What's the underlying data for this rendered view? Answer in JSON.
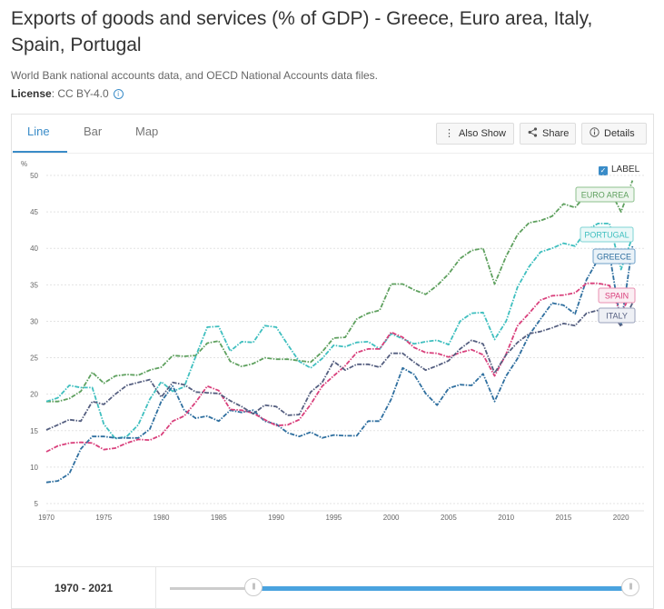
{
  "title": "Exports of goods and services (% of GDP) - Greece, Euro area, Italy, Spain, Portugal",
  "source": "World Bank national accounts data, and OECD National Accounts data files.",
  "license_label": "License",
  "license_value": ": CC BY-4.0",
  "tabs": [
    "Line",
    "Bar",
    "Map"
  ],
  "active_tab": "Line",
  "buttons": {
    "also_show": "Also Show",
    "share": "Share",
    "details": "Details"
  },
  "icons": {
    "also_show": "vertical-dots-icon",
    "share": "share-icon",
    "details": "info-circle-icon"
  },
  "label_toggle": "LABEL",
  "range_label": "1970 - 2021",
  "chart_data": {
    "type": "line",
    "title": "",
    "xlabel": "",
    "ylabel": "%",
    "x": [
      1970,
      1971,
      1972,
      1973,
      1974,
      1975,
      1976,
      1977,
      1978,
      1979,
      1980,
      1981,
      1982,
      1983,
      1984,
      1985,
      1986,
      1987,
      1988,
      1989,
      1990,
      1991,
      1992,
      1993,
      1994,
      1995,
      1996,
      1997,
      1998,
      1999,
      2000,
      2001,
      2002,
      2003,
      2004,
      2005,
      2006,
      2007,
      2008,
      2009,
      2010,
      2011,
      2012,
      2013,
      2014,
      2015,
      2016,
      2017,
      2018,
      2019,
      2020,
      2021
    ],
    "xticks": [
      1970,
      1975,
      1980,
      1985,
      1990,
      1995,
      2000,
      2005,
      2010,
      2015,
      2020
    ],
    "yticks": [
      5,
      10,
      15,
      20,
      25,
      30,
      35,
      40,
      45,
      50
    ],
    "xlim": [
      1970,
      2022
    ],
    "ylim": [
      5,
      50
    ],
    "grid": true,
    "legend": "inline labels at right",
    "series": [
      {
        "name": "EURO AREA",
        "color": "#5ea05e",
        "label_bg": "#eef6ee",
        "label_border": "#8cc08c",
        "values": [
          19,
          19,
          19.4,
          20.4,
          23,
          21.5,
          22.5,
          22.7,
          22.6,
          23.3,
          23.7,
          25.3,
          25.2,
          25.3,
          27,
          27.3,
          24.5,
          23.8,
          24.2,
          25,
          24.8,
          24.8,
          24.6,
          24.4,
          25.8,
          27.7,
          27.8,
          30.3,
          31.1,
          31.5,
          35.1,
          35.1,
          34.3,
          33.7,
          34.9,
          36.5,
          38.6,
          39.7,
          40,
          35.1,
          38.9,
          41.9,
          43.5,
          43.8,
          44.4,
          46.1,
          45.6,
          47.4,
          48.2,
          48.1,
          45,
          49.3
        ]
      },
      {
        "name": "PORTUGAL",
        "color": "#3fbfbf",
        "label_bg": "#eaf8f8",
        "label_border": "#7fd4d4",
        "values": [
          19,
          19.5,
          21.2,
          20.9,
          20.9,
          15.9,
          13.9,
          14.2,
          15.8,
          19.3,
          21.7,
          20.4,
          21,
          25.2,
          29.2,
          29.3,
          25.9,
          27.2,
          27.1,
          29.4,
          29.2,
          26.8,
          24.5,
          23.6,
          24.9,
          26.7,
          26.5,
          27.1,
          27.2,
          26.2,
          28.3,
          27.6,
          26.9,
          27.2,
          27.4,
          26.8,
          30,
          31.1,
          31.2,
          27.5,
          30,
          34.7,
          37.5,
          39.5,
          40,
          40.7,
          40.3,
          42.5,
          43.4,
          43.4,
          37.1,
          41.6
        ]
      },
      {
        "name": "GREECE",
        "color": "#2f6f9f",
        "label_bg": "#eaf2f8",
        "label_border": "#6fa0c8",
        "values": [
          7.9,
          8.1,
          9.1,
          12.5,
          14.2,
          14.2,
          14,
          14,
          14,
          15.2,
          19,
          21.1,
          17.8,
          16.7,
          17,
          16.3,
          17.8,
          17.5,
          17.8,
          16.3,
          15.9,
          14.7,
          14.2,
          14.8,
          14,
          14.4,
          14.3,
          14.3,
          16.3,
          16.3,
          19.3,
          23.6,
          22.7,
          20.1,
          18.5,
          20.8,
          21.3,
          21.2,
          22.8,
          19,
          22.5,
          24.9,
          28.1,
          30.3,
          32.5,
          32.2,
          31,
          35.7,
          38.5,
          39.3,
          29.6,
          40.3
        ]
      },
      {
        "name": "SPAIN",
        "color": "#d9407c",
        "label_bg": "#fbeef3",
        "label_border": "#e88fb0",
        "values": [
          12.1,
          12.9,
          13.3,
          13.4,
          13.3,
          12.4,
          12.6,
          13.3,
          13.8,
          13.7,
          14.4,
          16.3,
          17,
          18.9,
          21.1,
          20.5,
          17.9,
          17.8,
          17.4,
          16.5,
          15.7,
          15.8,
          16.5,
          18.6,
          21.1,
          22.5,
          23.9,
          25.7,
          26.2,
          26.2,
          28.5,
          27.8,
          26.4,
          25.7,
          25.6,
          25.1,
          25.7,
          26.1,
          25.4,
          22.5,
          25.5,
          29.4,
          31.1,
          32.9,
          33.5,
          33.6,
          33.9,
          35.2,
          35.2,
          34.9,
          30.9,
          34.4
        ]
      },
      {
        "name": "ITALY",
        "color": "#555f80",
        "label_bg": "#eef0f5",
        "label_border": "#9aa2bb",
        "values": [
          15.1,
          15.8,
          16.5,
          16.3,
          19,
          18.6,
          20,
          21.2,
          21.6,
          22,
          19.6,
          21.6,
          21.3,
          20.3,
          20.2,
          20.1,
          19.1,
          18.3,
          17.3,
          18.5,
          18.3,
          17.1,
          17.2,
          20.3,
          21.6,
          24.5,
          23.3,
          24.1,
          24.1,
          23.7,
          25.6,
          25.6,
          24.4,
          23.3,
          23.9,
          24.6,
          26.2,
          27.4,
          26.9,
          22.9,
          25.4,
          27.1,
          28.3,
          28.6,
          29.1,
          29.7,
          29.4,
          31.1,
          31.5,
          31.6,
          29.3,
          32.5
        ]
      }
    ]
  }
}
